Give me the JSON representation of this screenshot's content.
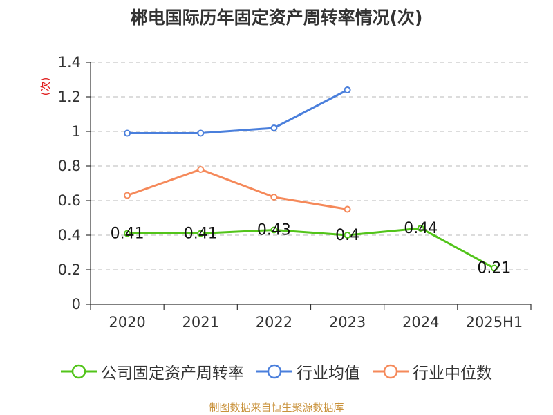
{
  "title": "郴电国际历年固定资产周转率情况(次)",
  "source": "制图数据来自恒生聚源数据库",
  "chart_data": {
    "type": "line",
    "title": "郴电国际历年固定资产周转率情况(次)",
    "ylabel": "(次)",
    "ylim": [
      0,
      1.4
    ],
    "yticks": [
      "0",
      "0.2",
      "0.4",
      "0.6",
      "0.8",
      "1",
      "1.2",
      "1.4"
    ],
    "categories": [
      "2020",
      "2021",
      "2022",
      "2023",
      "2024",
      "2025H1"
    ],
    "grid": true,
    "legend_position": "bottom",
    "series": [
      {
        "name": "公司固定资产周转率",
        "color": "#52c41a",
        "show_labels": true,
        "values": [
          0.41,
          0.41,
          0.43,
          0.4,
          0.44,
          0.21
        ],
        "labels": [
          "0.41",
          "0.41",
          "0.43",
          "0.4",
          "0.44",
          "0.21"
        ]
      },
      {
        "name": "行业均值",
        "color": "#4a7fdc",
        "show_labels": false,
        "values": [
          0.99,
          0.99,
          1.02,
          1.24,
          null,
          null
        ]
      },
      {
        "name": "行业中位数",
        "color": "#f5895a",
        "show_labels": false,
        "values": [
          0.63,
          0.78,
          0.62,
          0.55,
          null,
          null
        ]
      }
    ]
  }
}
